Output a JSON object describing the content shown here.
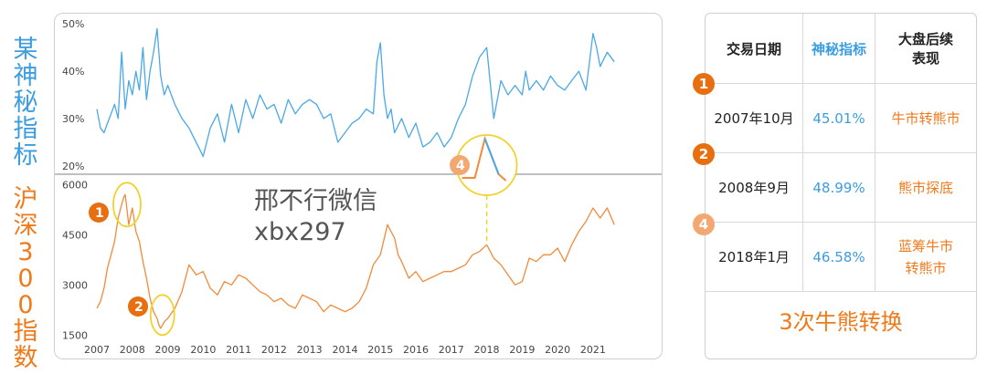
{
  "left_labels": {
    "top": "某神秘指标",
    "bottom": [
      "沪",
      "深",
      "3",
      "0",
      "0",
      "指",
      "数"
    ]
  },
  "watermark": {
    "line1": "邢不行微信",
    "line2": "xbx297"
  },
  "chart_data": [
    {
      "type": "line",
      "title": "",
      "ylabel": "某神秘指标",
      "ylim": [
        19,
        51
      ],
      "yticks": [
        "50%",
        "40%",
        "30%",
        "20%"
      ],
      "ytick_values": [
        50,
        40,
        30,
        20
      ],
      "series": [
        {
          "color": "#4aa8e6",
          "x": [
            2007.0,
            2007.1,
            2007.2,
            2007.3,
            2007.4,
            2007.5,
            2007.6,
            2007.7,
            2007.8,
            2007.9,
            2008.0,
            2008.1,
            2008.2,
            2008.3,
            2008.4,
            2008.5,
            2008.6,
            2008.7,
            2008.8,
            2008.9,
            2009.0,
            2009.2,
            2009.4,
            2009.6,
            2009.8,
            2010.0,
            2010.2,
            2010.4,
            2010.6,
            2010.8,
            2011.0,
            2011.2,
            2011.4,
            2011.6,
            2011.8,
            2012.0,
            2012.2,
            2012.4,
            2012.6,
            2012.8,
            2013.0,
            2013.2,
            2013.4,
            2013.6,
            2013.8,
            2014.0,
            2014.2,
            2014.4,
            2014.6,
            2014.8,
            2014.9,
            2015.0,
            2015.1,
            2015.2,
            2015.3,
            2015.4,
            2015.6,
            2015.8,
            2016.0,
            2016.2,
            2016.4,
            2016.6,
            2016.8,
            2017.0,
            2017.2,
            2017.4,
            2017.6,
            2017.8,
            2018.0,
            2018.2,
            2018.4,
            2018.6,
            2018.8,
            2019.0,
            2019.1,
            2019.2,
            2019.4,
            2019.6,
            2019.8,
            2020.0,
            2020.2,
            2020.4,
            2020.6,
            2020.8,
            2021.0,
            2021.1,
            2021.2,
            2021.4,
            2021.6
          ],
          "values": [
            32,
            28,
            27,
            29,
            31,
            33,
            30,
            44,
            32,
            38,
            35,
            40,
            36,
            45,
            34,
            40,
            44,
            49,
            39,
            35,
            37,
            33,
            30,
            28,
            25,
            22,
            28,
            31,
            25,
            33,
            27,
            34,
            30,
            35,
            32,
            33,
            29,
            34,
            31,
            33,
            34,
            33,
            30,
            31,
            25,
            27,
            29,
            30,
            32,
            31,
            42,
            46,
            35,
            30,
            32,
            27,
            30,
            26,
            29,
            24,
            25,
            27,
            24,
            26,
            30,
            33,
            39,
            43,
            45,
            30,
            38,
            35,
            37,
            35,
            40,
            36,
            38,
            36,
            39,
            37,
            36,
            38,
            40,
            36,
            48,
            45,
            41,
            44,
            42
          ]
        }
      ]
    },
    {
      "type": "line",
      "title": "",
      "ylabel": "沪深300指数",
      "ylim": [
        1400,
        6200
      ],
      "yticks": [
        "6000",
        "4500",
        "3000",
        "1500"
      ],
      "ytick_values": [
        6000,
        4500,
        3000,
        1500
      ],
      "xticks": [
        "2007",
        "2008",
        "2009",
        "2010",
        "2011",
        "2012",
        "2013",
        "2014",
        "2015",
        "2016",
        "2017",
        "2018",
        "2019",
        "2020",
        "2021"
      ],
      "xtick_values": [
        2007,
        2008,
        2009,
        2010,
        2011,
        2012,
        2013,
        2014,
        2015,
        2016,
        2017,
        2018,
        2019,
        2020,
        2021
      ],
      "series": [
        {
          "color": "#f28a3a",
          "x": [
            2007.0,
            2007.1,
            2007.2,
            2007.3,
            2007.4,
            2007.5,
            2007.6,
            2007.7,
            2007.75,
            2007.8,
            2007.9,
            2008.0,
            2008.1,
            2008.2,
            2008.3,
            2008.4,
            2008.5,
            2008.6,
            2008.7,
            2008.75,
            2008.8,
            2008.9,
            2009.0,
            2009.2,
            2009.4,
            2009.6,
            2009.8,
            2010.0,
            2010.2,
            2010.4,
            2010.6,
            2010.8,
            2011.0,
            2011.2,
            2011.4,
            2011.6,
            2011.8,
            2012.0,
            2012.2,
            2012.4,
            2012.6,
            2012.8,
            2013.0,
            2013.2,
            2013.4,
            2013.6,
            2013.8,
            2014.0,
            2014.2,
            2014.4,
            2014.6,
            2014.8,
            2015.0,
            2015.2,
            2015.4,
            2015.5,
            2015.6,
            2015.8,
            2016.0,
            2016.2,
            2016.4,
            2016.6,
            2016.8,
            2017.0,
            2017.2,
            2017.4,
            2017.6,
            2017.8,
            2018.0,
            2018.2,
            2018.4,
            2018.6,
            2018.8,
            2019.0,
            2019.2,
            2019.4,
            2019.6,
            2019.8,
            2020.0,
            2020.2,
            2020.4,
            2020.6,
            2020.8,
            2021.0,
            2021.2,
            2021.4,
            2021.6
          ],
          "values": [
            2300,
            2500,
            2900,
            3500,
            3900,
            4300,
            5000,
            5400,
            5600,
            5700,
            4800,
            5300,
            4600,
            4300,
            3700,
            3200,
            2600,
            2200,
            2000,
            1800,
            1700,
            1900,
            2000,
            2300,
            2800,
            3600,
            3300,
            3400,
            2900,
            2700,
            3100,
            3000,
            3300,
            3200,
            3000,
            2800,
            2700,
            2500,
            2600,
            2400,
            2300,
            2700,
            2600,
            2500,
            2200,
            2400,
            2300,
            2200,
            2300,
            2500,
            2900,
            3600,
            3900,
            4800,
            4400,
            3900,
            3700,
            3200,
            3400,
            3100,
            3200,
            3300,
            3400,
            3400,
            3500,
            3600,
            3900,
            4000,
            4200,
            3800,
            3600,
            3300,
            3000,
            3100,
            3800,
            3700,
            3900,
            3900,
            4100,
            3700,
            4200,
            4600,
            4900,
            5300,
            5000,
            5300,
            4800
          ]
        }
      ]
    }
  ],
  "annotations": [
    "1",
    "2",
    "4"
  ],
  "table": {
    "headers": [
      "交易日期",
      "神秘指标",
      "大盘后续\n表现"
    ],
    "rows": [
      {
        "badge": "1",
        "date": "2007年10月",
        "index": "45.01%",
        "perf": "牛市转熊市"
      },
      {
        "badge": "2",
        "date": "2008年9月",
        "index": "48.99%",
        "perf": "熊市探底"
      },
      {
        "badge": "4",
        "date": "2018年1月",
        "index": "46.58%",
        "perf": "蓝筹牛市\n转熊市"
      }
    ],
    "summary": "3次牛熊转换"
  },
  "colors": {
    "blue": "#3b9de0",
    "orange": "#f07a1a",
    "highlight": "#f2d22e"
  }
}
